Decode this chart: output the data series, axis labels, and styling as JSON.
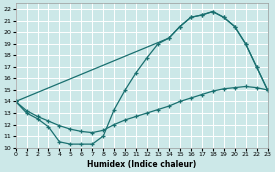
{
  "xlabel": "Humidex (Indice chaleur)",
  "bg_color": "#cce8e8",
  "grid_color": "#ffffff",
  "line_color": "#1a7070",
  "xlim": [
    0,
    23
  ],
  "ylim": [
    10,
    22.5
  ],
  "xticks": [
    0,
    1,
    2,
    3,
    4,
    5,
    6,
    7,
    8,
    9,
    10,
    11,
    12,
    13,
    14,
    15,
    16,
    17,
    18,
    19,
    20,
    21,
    22,
    23
  ],
  "yticks": [
    10,
    11,
    12,
    13,
    14,
    15,
    16,
    17,
    18,
    19,
    20,
    21,
    22
  ],
  "line1_x": [
    0,
    1,
    2,
    3,
    4,
    5,
    6,
    7,
    8,
    9,
    10,
    11,
    12,
    13,
    14,
    15,
    16,
    17,
    18,
    19,
    20,
    21,
    22,
    23
  ],
  "line1_y": [
    14.0,
    13.0,
    12.5,
    11.8,
    10.5,
    10.3,
    10.3,
    10.3,
    11.0,
    13.3,
    15.0,
    16.5,
    17.8,
    19.0,
    19.5,
    20.5,
    21.3,
    21.5,
    21.8,
    21.3,
    20.5,
    19.0,
    17.0,
    15.0
  ],
  "line2_x": [
    0,
    1,
    2,
    3,
    4,
    5,
    6,
    7,
    8,
    9,
    10,
    11,
    12,
    13,
    14,
    15,
    16,
    17,
    18,
    19,
    20,
    21,
    22,
    23
  ],
  "line2_y": [
    14.0,
    13.2,
    12.7,
    12.3,
    11.9,
    11.6,
    11.4,
    11.3,
    11.5,
    12.0,
    12.4,
    12.7,
    13.0,
    13.3,
    13.6,
    14.0,
    14.3,
    14.6,
    14.9,
    15.1,
    15.2,
    15.3,
    15.2,
    15.0
  ],
  "line3_x": [
    0,
    14,
    15,
    16,
    17,
    18,
    19,
    20,
    21,
    22,
    23
  ],
  "line3_y": [
    14.0,
    19.5,
    20.5,
    21.3,
    21.5,
    21.8,
    21.3,
    20.5,
    19.0,
    17.0,
    15.0
  ]
}
